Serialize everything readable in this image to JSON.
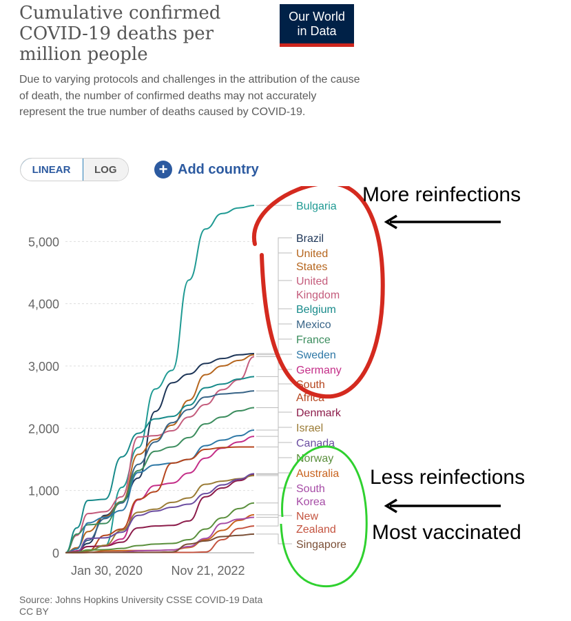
{
  "header": {
    "title": "Cumulative confirmed COVID-19 deaths per million people",
    "subtitle": "Due to varying protocols and challenges in the attribution of the cause of death, the number of confirmed deaths may not accurately represent the true number of deaths caused by COVID-19.",
    "logo_line1": "Our World",
    "logo_line2": "in Data"
  },
  "controls": {
    "scale_options": [
      "LINEAR",
      "LOG"
    ],
    "selected_scale": "LINEAR",
    "add_country_label": "Add country",
    "add_icon": "plus-circle-icon"
  },
  "footer": {
    "source": "Source: Johns Hopkins University CSSE COVID-19 Data",
    "license": "CC BY"
  },
  "annotations": {
    "more_reinfections": "More reinfections",
    "less_reinfections": "Less reinfections",
    "most_vaccinated": "Most vaccinated",
    "red_ellipse_color": "#d42a1f",
    "green_ellipse_color": "#2fd12f",
    "arrow_color": "#000000"
  },
  "chart_data": {
    "type": "line",
    "title": "Cumulative confirmed COVID-19 deaths per million people",
    "x_tick_labels": [
      "Jan 30, 2020",
      "Nov 21, 2022"
    ],
    "x": [
      "2020-01-30",
      "2020-04-01",
      "2020-06-01",
      "2020-09-01",
      "2020-12-01",
      "2021-03-01",
      "2021-06-01",
      "2021-09-01",
      "2021-12-01",
      "2022-03-01",
      "2022-06-01",
      "2022-09-01",
      "2022-11-21"
    ],
    "ylim": [
      0,
      5700
    ],
    "yticks": [
      0,
      1000,
      2000,
      3000,
      4000,
      5000
    ],
    "ytick_labels": [
      "0",
      "1,000",
      "2,000",
      "3,000",
      "4,000",
      "5,000"
    ],
    "grid": true,
    "series": [
      {
        "name": "Bulgaria",
        "color": "#1f9a93",
        "values": [
          0,
          5,
          30,
          110,
          1050,
          1690,
          2630,
          2930,
          4380,
          5200,
          5450,
          5540,
          5580
        ]
      },
      {
        "name": "Brazil",
        "color": "#1d3557",
        "values": [
          0,
          30,
          150,
          600,
          820,
          1200,
          2270,
          2730,
          2870,
          3040,
          3120,
          3180,
          3200
        ]
      },
      {
        "name": "United States",
        "color": "#b5651d",
        "values": [
          0,
          80,
          340,
          580,
          820,
          1580,
          1820,
          2050,
          2450,
          2860,
          3000,
          3090,
          3180
        ]
      },
      {
        "name": "United Kingdom",
        "color": "#c45c7c",
        "values": [
          0,
          280,
          630,
          660,
          900,
          1860,
          1880,
          1960,
          2180,
          2380,
          2620,
          2780,
          3150
        ]
      },
      {
        "name": "Belgium",
        "color": "#178a8a",
        "values": [
          0,
          400,
          840,
          860,
          1540,
          1920,
          2150,
          2190,
          2370,
          2650,
          2710,
          2790,
          2830
        ]
      },
      {
        "name": "Mexico",
        "color": "#386487",
        "values": [
          0,
          10,
          200,
          550,
          800,
          1420,
          1780,
          2090,
          2300,
          2500,
          2550,
          2570,
          2600
        ]
      },
      {
        "name": "France",
        "color": "#3c8d5e",
        "values": [
          0,
          300,
          450,
          470,
          820,
          1320,
          1630,
          1700,
          1850,
          2070,
          2180,
          2280,
          2330
        ]
      },
      {
        "name": "Sweden",
        "color": "#2e78a6",
        "values": [
          0,
          60,
          480,
          570,
          680,
          1290,
          1410,
          1440,
          1500,
          1720,
          1810,
          1880,
          1970
        ]
      },
      {
        "name": "Germany",
        "color": "#c42e88",
        "values": [
          0,
          30,
          100,
          110,
          220,
          850,
          1080,
          1120,
          1280,
          1520,
          1680,
          1780,
          1870
        ]
      },
      {
        "name": "South Africa",
        "color": "#b5451d",
        "values": [
          0,
          0,
          30,
          280,
          380,
          860,
          980,
          1440,
          1500,
          1660,
          1690,
          1700,
          1700
        ]
      },
      {
        "name": "Denmark",
        "color": "#8c1c4a",
        "values": [
          0,
          20,
          100,
          110,
          170,
          400,
          430,
          440,
          510,
          900,
          1040,
          1160,
          1260
        ]
      },
      {
        "name": "Israel",
        "color": "#9a7b35",
        "values": [
          0,
          5,
          30,
          120,
          360,
          650,
          700,
          810,
          880,
          1100,
          1150,
          1190,
          1240
        ]
      },
      {
        "name": "Canada",
        "color": "#6a4ca0",
        "values": [
          0,
          10,
          230,
          240,
          330,
          600,
          670,
          730,
          780,
          950,
          1090,
          1180,
          1270
        ]
      },
      {
        "name": "Norway",
        "color": "#5a8f3c",
        "values": [
          0,
          10,
          45,
          50,
          70,
          115,
          140,
          150,
          210,
          380,
          560,
          710,
          800
        ]
      },
      {
        "name": "Australia",
        "color": "#c8621d",
        "values": [
          0,
          2,
          4,
          30,
          35,
          36,
          36,
          45,
          85,
          210,
          360,
          520,
          610
        ]
      },
      {
        "name": "South Korea",
        "color": "#a64ca6",
        "values": [
          0,
          3,
          6,
          7,
          10,
          32,
          38,
          45,
          100,
          230,
          470,
          540,
          570
        ]
      },
      {
        "name": "New Zealand",
        "color": "#c4533f",
        "values": [
          0,
          1,
          4,
          5,
          5,
          5,
          5,
          5,
          6,
          12,
          210,
          390,
          430
        ]
      },
      {
        "name": "Singapore",
        "color": "#7a4e35",
        "values": [
          0,
          1,
          5,
          5,
          5,
          5,
          6,
          13,
          140,
          190,
          260,
          280,
          300
        ]
      }
    ]
  }
}
